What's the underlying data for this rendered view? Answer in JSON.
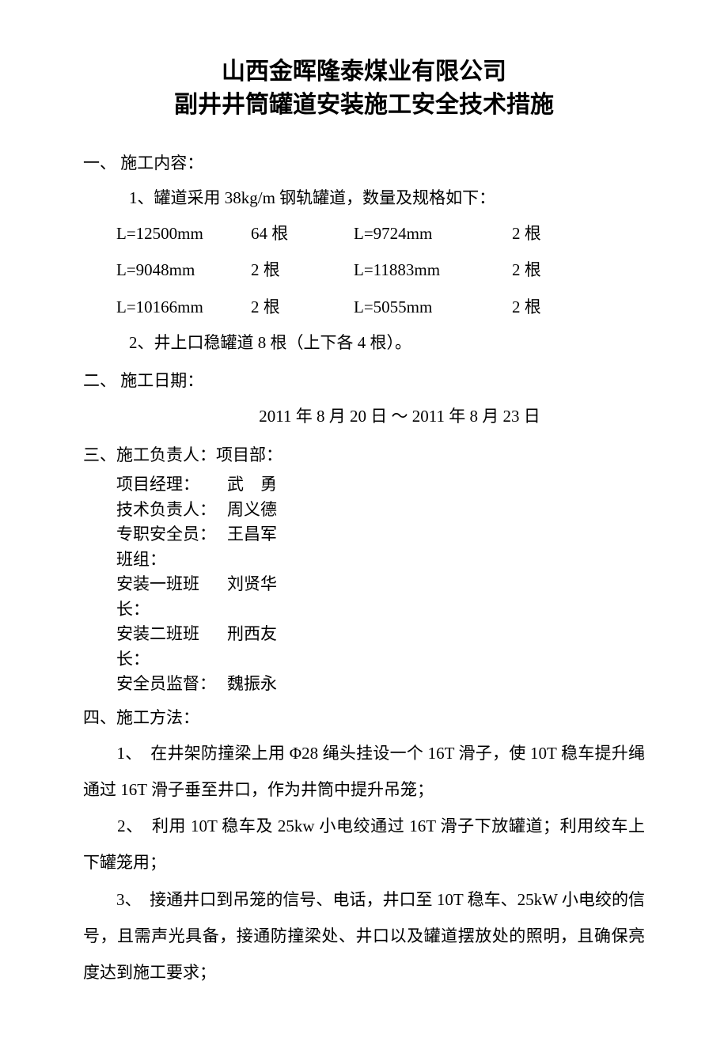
{
  "title": "山西金晖隆泰煤业有限公司",
  "subtitle": "副井井筒罐道安装施工安全技术措施",
  "s1": {
    "head": "一、 施工内容：",
    "p1": "1、罐道采用 38kg/m 钢轨罐道，数量及规格如下：",
    "rows": [
      {
        "a": "L=12500mm",
        "b": "64 根",
        "c": "L=9724mm",
        "d": "2 根"
      },
      {
        "a": "L=9048mm",
        "b": "2 根",
        "c": "L=11883mm",
        "d": "2 根"
      },
      {
        "a": "L=10166mm",
        "b": "2 根",
        "c": "L=5055mm",
        "d": "2 根"
      }
    ],
    "p2": "2、井上口稳罐道 8 根（上下各 4 根）。"
  },
  "s2": {
    "head": "二、 施工日期：",
    "date": "2011 年 8 月 20 日 ～ 2011 年 8 月 23 日"
  },
  "s3": {
    "head": "三、施工负责人：项目部：",
    "rows": [
      {
        "role": "项目经理：",
        "name": "武　勇"
      },
      {
        "role": "技术负责人：",
        "name": "周义德"
      },
      {
        "role": "专职安全员：",
        "name": "王昌军"
      },
      {
        "role": "班组：",
        "name": ""
      },
      {
        "role": "安装一班班长：",
        "name": "刘贤华"
      },
      {
        "role": "安装二班班长：",
        "name": "刑西友"
      },
      {
        "role": "安全员监督：",
        "name": "魏振永"
      }
    ]
  },
  "s4": {
    "head": "四、施工方法：",
    "items": [
      "　　1、　在井架防撞梁上用 Φ28 绳头挂设一个 16T 滑子，使 10T 稳车提升绳通过 16T 滑子垂至井口，作为井筒中提升吊笼；",
      "　　2、　利用 10T 稳车及 25kw 小电绞通过 16T 滑子下放罐道；利用绞车上下罐笼用；",
      "　　3、　接通井口到吊笼的信号、电话，井口至 10T 稳车、25kW 小电绞的信号，且需声光具备，接通防撞梁处、井口以及罐道摆放处的照明，且确保亮度达到施工要求；"
    ]
  }
}
